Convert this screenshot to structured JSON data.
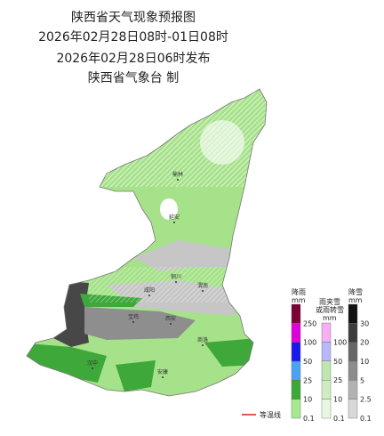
{
  "header": {
    "title": "陕西省天气现象预报图",
    "period": "2026年02月28日08时-01日08时",
    "issued": "2026年02月28日06时发布",
    "producer": "陕西省气象台 制"
  },
  "cities": [
    "榆林",
    "延安",
    "铜川",
    "渭南",
    "咸阳",
    "宝鸡",
    "西安",
    "商洛",
    "汉中",
    "安康"
  ],
  "legend": {
    "rain": {
      "title": "降雨",
      "unit": "mm",
      "ticks": [
        250,
        100,
        50,
        25,
        10,
        0.1
      ]
    },
    "sleet": {
      "title": [
        "雨夹雪",
        "或雨转雪"
      ],
      "unit": "mm",
      "ticks": [
        100,
        50,
        25,
        10,
        0.1
      ]
    },
    "snow": {
      "title": "降雪",
      "unit": "mm",
      "ticks": [
        30,
        20,
        10,
        5,
        2.5,
        0.1
      ]
    },
    "isotherm": "等温线"
  }
}
